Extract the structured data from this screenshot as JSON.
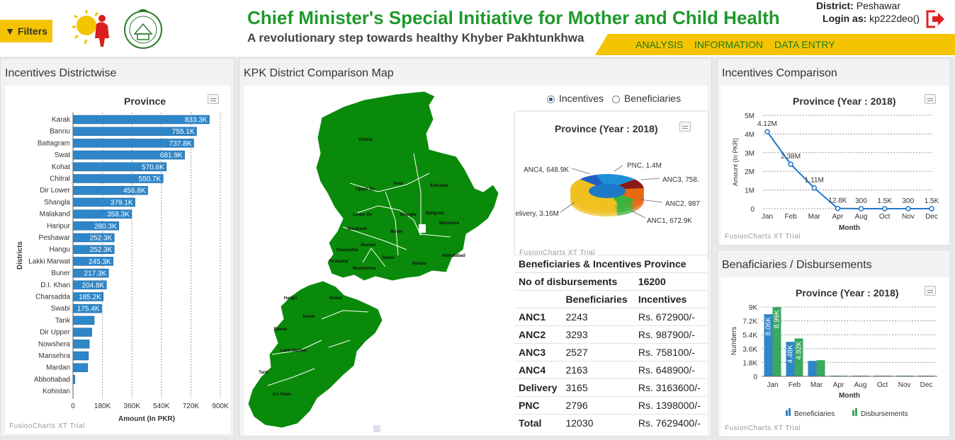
{
  "header": {
    "filters_label": "Filters",
    "title": "Chief Minister's Special Initiative for Mother and Child Health",
    "subtitle": "A revolutionary step towards healthy Khyber Pakhtunkhwa",
    "district_label": "District:",
    "district_value": "Peshawar",
    "login_label": "Login as:",
    "login_value": "kp222deo()",
    "nav": [
      "ANALYSIS",
      "INFORMATION",
      "DATA ENTRY"
    ],
    "accent": "#f5c400",
    "title_color": "#1e9a2c"
  },
  "panels": {
    "incentives_districtwise": "Incentives Districtwise",
    "map": "KPK District Comparison Map",
    "incentives_comparison": "Incentives Comparison",
    "beneficiaries_disbursements": "Benaficiaries / Disbursements"
  },
  "fusion_credit": "FusionCharts XT Trial",
  "map": {
    "radio_options": [
      "Incentives",
      "Beneficiaries"
    ],
    "selected": "Incentives",
    "district_labels": [
      "Chitral",
      "Swat",
      "Upper Dir",
      "Kohistan",
      "Lower Dir",
      "Shangla",
      "Battgram",
      "Malakand",
      "Buner",
      "Mansehra",
      "Mardan",
      "Charsadda",
      "Peshawar",
      "Swabi",
      "Haripur",
      "Abbottabad",
      "Nowshehra",
      "Hangu",
      "Kohat",
      "Karak",
      "Bannu",
      "Lakki Marwat",
      "Tank",
      "D.I. Khan"
    ],
    "fill_color": "#0a8a0a"
  },
  "chart_data": [
    {
      "type": "bar",
      "title": "Province",
      "xlabel": "Districts",
      "ylabel": "Amount (In PKR)",
      "categories": [
        "Karak",
        "Bannu",
        "Battagram",
        "Swat",
        "Kohat",
        "Chitral",
        "Dir Lower",
        "Shangla",
        "Malakand",
        "Haripur",
        "Peshawar",
        "Hangu",
        "Lakki Marwat",
        "Buner",
        "D.I. Khan",
        "Charsadda",
        "Swabi",
        "Tank",
        "Dir Upper",
        "Nowshera",
        "Mansehra",
        "Mardan",
        "Abbottabad",
        "Kohistan"
      ],
      "values": [
        833300,
        755100,
        737800,
        681900,
        570600,
        550700,
        456800,
        379100,
        358300,
        280300,
        252300,
        252300,
        245300,
        217300,
        204800,
        185200,
        175400,
        130000,
        115000,
        100000,
        95000,
        90000,
        12000,
        0
      ],
      "value_labels": [
        "833.3K",
        "755.1K",
        "737.8K",
        "681.9K",
        "570.6K",
        "550.7K",
        "456.8K",
        "379.1K",
        "358.3K",
        "280.3K",
        "252.3K",
        "252.3K",
        "245.3K",
        "217.3K",
        "204.8K",
        "185.2K",
        "175.4K",
        "",
        "",
        "",
        "",
        "",
        "",
        ""
      ],
      "ticks": [
        "0",
        "180K",
        "360K",
        "540K",
        "720K",
        "900K"
      ],
      "xlim": [
        0,
        900000
      ],
      "bar_color": "#2e86c8"
    },
    {
      "type": "pie",
      "title": "Province (Year : 2018)",
      "labels": [
        "PNC, 1.4M",
        "ANC3, 758.",
        "ANC2, 987",
        "ANC1, 672.9K",
        "Delivery, 3.16M",
        "ANC4, 648.9K"
      ],
      "values": [
        1398000,
        758100,
        987900,
        672900,
        3163600,
        648900
      ],
      "colors": [
        "#1e90d8",
        "#8b1a1a",
        "#e86a10",
        "#3cb33c",
        "#f0c020",
        "#2060c0"
      ]
    },
    {
      "type": "line",
      "title": "Province (Year : 2018)",
      "xlabel": "Month",
      "ylabel": "Amount (In PKR)",
      "categories": [
        "Jan",
        "Feb",
        "Mar",
        "Apr",
        "Aug",
        "Oct",
        "Nov",
        "Dec"
      ],
      "values": [
        4120000,
        2380000,
        1110000,
        12800,
        300,
        1500,
        300,
        1500
      ],
      "value_labels": [
        "4.12M",
        "2.38M",
        "1.11M",
        "12.8K",
        "300",
        "1.5K",
        "300",
        "1.5K"
      ],
      "ticks": [
        "0",
        "1M",
        "2M",
        "3M",
        "4M",
        "5M"
      ],
      "ylim": [
        0,
        5000000
      ],
      "color": "#1f77c8"
    },
    {
      "type": "bar",
      "title": "Province (Year : 2018)",
      "xlabel": "Month",
      "ylabel": "Numbers",
      "categories": [
        "Jan",
        "Feb",
        "Mar",
        "Apr",
        "Aug",
        "Oct",
        "Nov",
        "Dec"
      ],
      "series": [
        {
          "name": "Beneficiaries",
          "values": [
            8060,
            4480,
            2000,
            10,
            10,
            10,
            10,
            10
          ],
          "value_labels": [
            "8.06K",
            "4.48K",
            "",
            "",
            "",
            "",
            "",
            ""
          ],
          "color": "#2e86c8"
        },
        {
          "name": "Disbursements",
          "values": [
            8990,
            4920,
            2100,
            10,
            10,
            10,
            10,
            10
          ],
          "value_labels": [
            "8.99K",
            "4.92K",
            "",
            "",
            "",
            "",
            "",
            ""
          ],
          "color": "#3aa860"
        }
      ],
      "ticks": [
        "0",
        "1.8K",
        "3.6K",
        "5.4K",
        "7.2K",
        "9K"
      ],
      "ylim": [
        0,
        9000
      ]
    }
  ],
  "table": {
    "title": "Beneficiaries & Incentives Province",
    "disb_label": "No of disbursements",
    "disb_value": "16200",
    "col_beneficiaries": "Beneficiaries",
    "col_incentives": "Incentives",
    "rows": [
      {
        "label": "ANC1",
        "beneficiaries": "2243",
        "incentives": "Rs. 672900/-"
      },
      {
        "label": "ANC2",
        "beneficiaries": "3293",
        "incentives": "Rs. 987900/-"
      },
      {
        "label": "ANC3",
        "beneficiaries": "2527",
        "incentives": "Rs. 758100/-"
      },
      {
        "label": "ANC4",
        "beneficiaries": "2163",
        "incentives": "Rs. 648900/-"
      },
      {
        "label": "Delivery",
        "beneficiaries": "3165",
        "incentives": "Rs. 3163600/-"
      },
      {
        "label": "PNC",
        "beneficiaries": "2796",
        "incentives": "Rs. 1398000/-"
      },
      {
        "label": "Total",
        "beneficiaries": "12030",
        "incentives": "Rs. 7629400/-"
      }
    ]
  }
}
